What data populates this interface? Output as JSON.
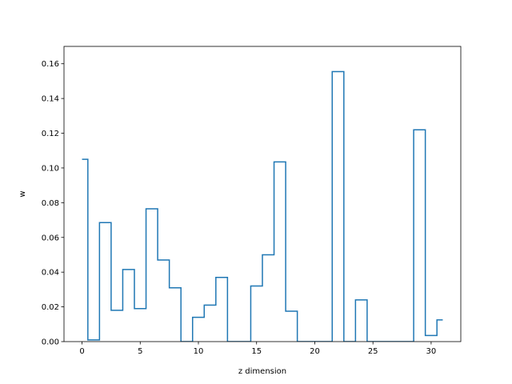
{
  "chart_data": {
    "type": "line",
    "drawstyle": "steps-mid",
    "xlabel": "z dimension",
    "ylabel": "w",
    "xlim": [
      -1.55,
      32.55
    ],
    "ylim": [
      0,
      0.17
    ],
    "xticks": [
      0,
      5,
      10,
      15,
      20,
      25,
      30
    ],
    "xtick_labels": [
      "0",
      "5",
      "10",
      "15",
      "20",
      "25",
      "30"
    ],
    "yticks": [
      0,
      0.02,
      0.04,
      0.06,
      0.08,
      0.1,
      0.12,
      0.14,
      0.16
    ],
    "ytick_labels": [
      "0.00",
      "0.02",
      "0.04",
      "0.06",
      "0.08",
      "0.10",
      "0.12",
      "0.14",
      "0.16"
    ],
    "grid": false,
    "color": "#1f77b4",
    "series": [
      {
        "x": [
          0,
          1,
          2,
          3,
          4,
          5,
          6,
          7,
          8,
          9,
          10,
          11,
          12,
          13,
          14,
          15,
          16,
          17,
          18,
          19,
          20,
          21,
          22,
          23,
          24,
          25,
          26,
          27,
          28,
          29,
          30,
          31
        ],
        "y": [
          0.105,
          0.001,
          0.0685,
          0.018,
          0.0415,
          0.019,
          0.0765,
          0.047,
          0.031,
          0.0,
          0.014,
          0.021,
          0.037,
          0.0,
          0.0,
          0.032,
          0.05,
          0.1035,
          0.0175,
          0.0,
          0.0,
          0.0,
          0.1555,
          0.0,
          0.024,
          0.0,
          0.0,
          0.0,
          0.0,
          0.122,
          0.0035,
          0.0125
        ]
      }
    ]
  }
}
